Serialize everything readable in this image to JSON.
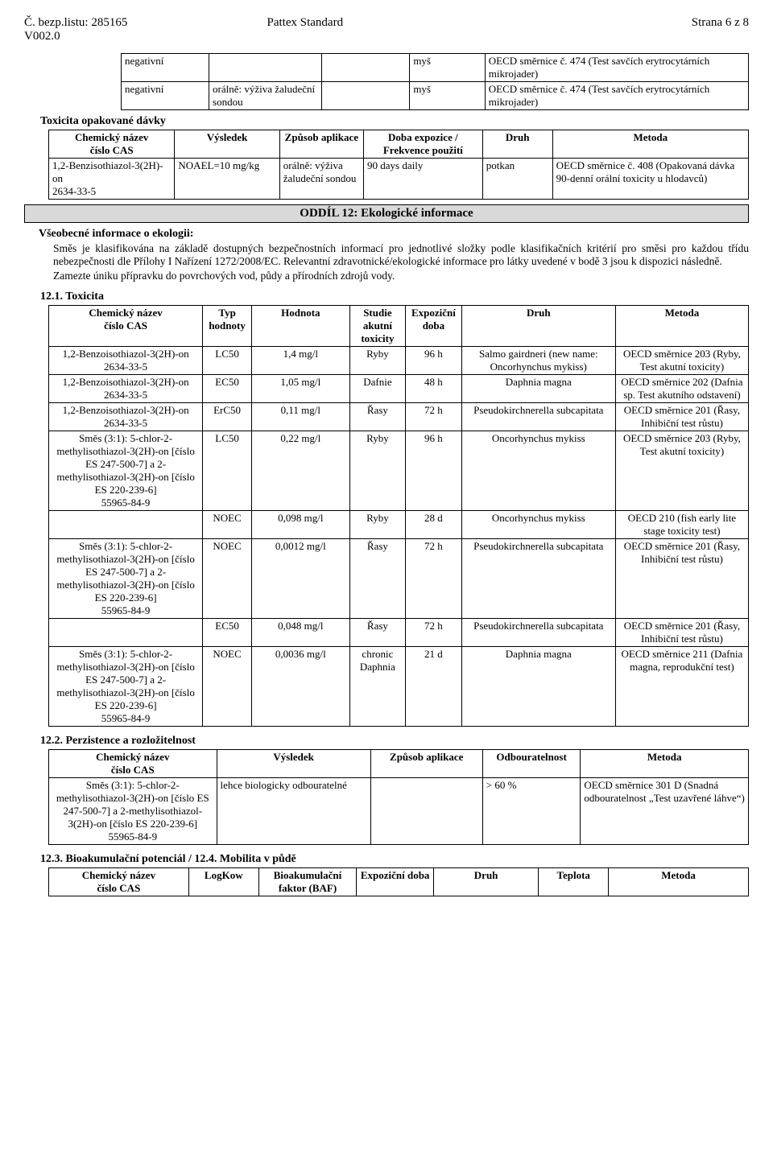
{
  "header": {
    "doc_num": "Č. bezp.listu: 285165",
    "version": "V002.0",
    "title": "Pattex Standard",
    "page": "Strana 6 z 8"
  },
  "tbl1": {
    "r1c1": "negativní",
    "r1c2": "",
    "r1c3": "",
    "r1c4": "myš",
    "r1c5": "OECD směrnice č. 474 (Test savčích erytrocytárních mikrojader)",
    "r2c1": "negativní",
    "r2c2": "orálně: výživa žaludeční sondou",
    "r2c3": "",
    "r2c4": "myš",
    "r2c5": "OECD směrnice č. 474 (Test savčích erytrocytárních mikrojader)"
  },
  "tox_heading": "Toxicita opakované dávky",
  "tbl2": {
    "h1": "Chemický název\nčíslo CAS",
    "h2": "Výsledek",
    "h3": "Způsob aplikace",
    "h4": "Doba expozice / Frekvence použití",
    "h5": "Druh",
    "h6": "Metoda",
    "r1c1": "1,2-Benzisothiazol-3(2H)-on\n2634-33-5",
    "r1c2": "NOAEL=10 mg/kg",
    "r1c3": "orálně: výživa žaludeční sondou",
    "r1c4": "90 days daily",
    "r1c5": "potkan",
    "r1c6": "OECD směrnice č. 408 (Opakovaná dávka 90-denní orální toxicity u hlodavců)"
  },
  "section12": "ODDÍL 12: Ekologické informace",
  "eco_heading": "Všeobecné informace o ekologii:",
  "eco_p1": "Směs je klasifikována na základě dostupných bezpečnostních informací pro jednotlivé složky podle klasifikačních kritérií pro směsi pro každou třídu nebezpečnosti dle Přílohy I Nařízení 1272/2008/EC. Relevantní zdravotnické/ekologické informace pro látky uvedené v bodě 3 jsou k dispozici následně.",
  "eco_p2": "Zamezte úniku přípravku do povrchových vod, půdy a přírodních zdrojů vody.",
  "s121": "12.1. Toxicita",
  "tbl3": {
    "h1": "Chemický název\nčíslo CAS",
    "h2": "Typ hodnoty",
    "h3": "Hodnota",
    "h4": "Studie akutní toxicity",
    "h5": "Expoziční doba",
    "h6": "Druh",
    "h7": "Metoda",
    "rows": [
      {
        "c1": "1,2-Benzoisothiazol-3(2H)-on\n2634-33-5",
        "c2": "LC50",
        "c3": "1,4 mg/l",
        "c4": "Ryby",
        "c5": "96 h",
        "c6": "Salmo gairdneri (new name: Oncorhynchus mykiss)",
        "c7": "OECD směrnice 203 (Ryby, Test akutní toxicity)"
      },
      {
        "c1": "1,2-Benzoisothiazol-3(2H)-on\n2634-33-5",
        "c2": "EC50",
        "c3": "1,05 mg/l",
        "c4": "Dafnie",
        "c5": "48 h",
        "c6": "Daphnia magna",
        "c7": "OECD směrnice 202 (Dafnia sp. Test akutního odstavení)"
      },
      {
        "c1": "1,2-Benzoisothiazol-3(2H)-on\n2634-33-5",
        "c2": "ErC50",
        "c3": "0,11 mg/l",
        "c4": "Řasy",
        "c5": "72 h",
        "c6": "Pseudokirchnerella subcapitata",
        "c7": "OECD směrnice 201 (Řasy, Inhibiční test růstu)"
      },
      {
        "c1": "Směs (3:1): 5-chlor-2-methylisothiazol-3(2H)-on [číslo ES 247-500-7] a 2-methylisothiazol-3(2H)-on [číslo ES 220-239-6]\n55965-84-9",
        "c2": "LC50",
        "c3": "0,22 mg/l",
        "c4": "Ryby",
        "c5": "96 h",
        "c6": "Oncorhynchus mykiss",
        "c7": "OECD směrnice 203 (Ryby, Test akutní toxicity)"
      },
      {
        "c1": "",
        "c2": "NOEC",
        "c3": "0,098 mg/l",
        "c4": "Ryby",
        "c5": "28 d",
        "c6": "Oncorhynchus mykiss",
        "c7": "OECD 210 (fish early lite stage toxicity test)"
      },
      {
        "c1": "Směs (3:1): 5-chlor-2-methylisothiazol-3(2H)-on [číslo ES 247-500-7] a 2-methylisothiazol-3(2H)-on [číslo ES 220-239-6]\n55965-84-9",
        "c2": "NOEC",
        "c3": "0,0012 mg/l",
        "c4": "Řasy",
        "c5": "72 h",
        "c6": "Pseudokirchnerella subcapitata",
        "c7": "OECD směrnice 201 (Řasy, Inhibiční test růstu)"
      },
      {
        "c1": "",
        "c2": "EC50",
        "c3": "0,048 mg/l",
        "c4": "Řasy",
        "c5": "72 h",
        "c6": "Pseudokirchnerella subcapitata",
        "c7": "OECD směrnice 201 (Řasy, Inhibiční test růstu)"
      },
      {
        "c1": "Směs (3:1): 5-chlor-2-methylisothiazol-3(2H)-on [číslo ES 247-500-7] a 2-methylisothiazol-3(2H)-on [číslo ES 220-239-6]\n55965-84-9",
        "c2": "NOEC",
        "c3": "0,0036 mg/l",
        "c4": "chronic Daphnia",
        "c5": "21 d",
        "c6": "Daphnia magna",
        "c7": "OECD směrnice 211 (Dafnia magna, reprodukční test)"
      }
    ]
  },
  "s122": "12.2. Perzistence a rozložitelnost",
  "tbl4": {
    "h1": "Chemický název\nčíslo CAS",
    "h2": "Výsledek",
    "h3": "Způsob aplikace",
    "h4": "Odbouratelnost",
    "h5": "Metoda",
    "r1c1": "Směs (3:1): 5-chlor-2-methylisothiazol-3(2H)-on [číslo ES 247-500-7] a 2-methylisothiazol-3(2H)-on [číslo ES 220-239-6]\n55965-84-9",
    "r1c2": "lehce biologicky odbouratelné",
    "r1c3": "",
    "r1c4": "> 60 %",
    "r1c5": "OECD směrnice 301 D (Snadná odbouratelnost „Test uzavřené láhve“)"
  },
  "s123": "12.3. Bioakumulační potenciál / 12.4. Mobilita v půdě",
  "tbl5": {
    "h1": "Chemický název\nčíslo CAS",
    "h2": "LogKow",
    "h3": "Bioakumulační faktor (BAF)",
    "h4": "Expoziční doba",
    "h5": "Druh",
    "h6": "Teplota",
    "h7": "Metoda"
  }
}
